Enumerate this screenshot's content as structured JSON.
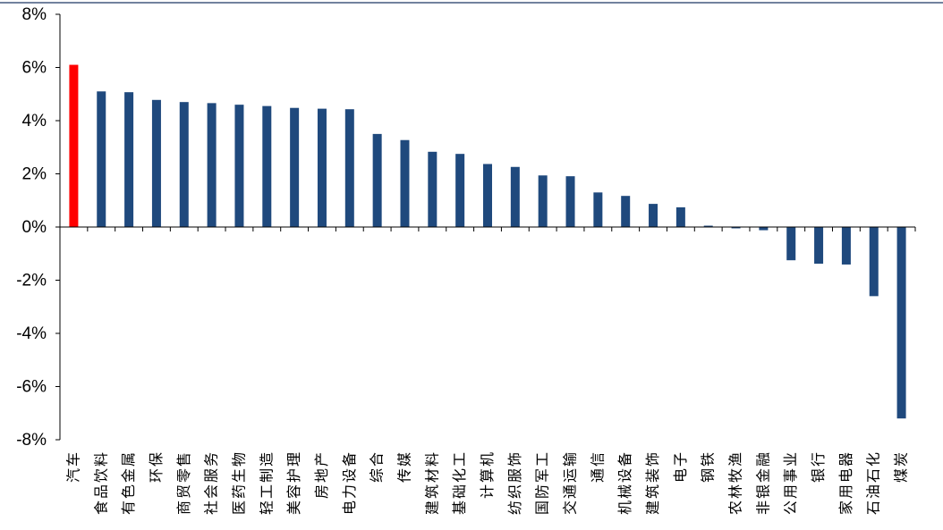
{
  "chart_data": {
    "type": "bar",
    "title": "",
    "xlabel": "",
    "ylabel": "",
    "ylim": [
      -8,
      8
    ],
    "yticks": [
      8,
      6,
      4,
      2,
      0,
      -2,
      -4,
      -6,
      -8
    ],
    "ytick_labels": [
      "8%",
      "6%",
      "4%",
      "2%",
      "0%",
      "-2%",
      "-4%",
      "-6%",
      "-8%"
    ],
    "grid": false,
    "legend": "none",
    "colors": {
      "highlight": "#ff0000",
      "default": "#1f497d",
      "axis": "#000000",
      "top_rule": "#1f3864"
    },
    "categories": [
      "汽车",
      "食品饮料",
      "有色金属",
      "环保",
      "商贸零售",
      "社会服务",
      "医药生物",
      "轻工制造",
      "美容护理",
      "房地产",
      "电力设备",
      "综合",
      "传媒",
      "建筑材料",
      "基础化工",
      "计算机",
      "纺织服饰",
      "国防军工",
      "交通运输",
      "通信",
      "机械设备",
      "建筑装饰",
      "电子",
      "钢铁",
      "农林牧渔",
      "非银金融",
      "公用事业",
      "银行",
      "家用电器",
      "石油石化",
      "煤炭"
    ],
    "values": [
      6.1,
      5.1,
      5.07,
      4.78,
      4.7,
      4.66,
      4.6,
      4.55,
      4.48,
      4.45,
      4.43,
      3.5,
      3.27,
      2.83,
      2.75,
      2.37,
      2.26,
      1.94,
      1.91,
      1.3,
      1.17,
      0.87,
      0.74,
      0.05,
      -0.05,
      -0.12,
      -1.25,
      -1.38,
      -1.41,
      -2.6,
      -7.2
    ],
    "highlight_index": 0
  }
}
